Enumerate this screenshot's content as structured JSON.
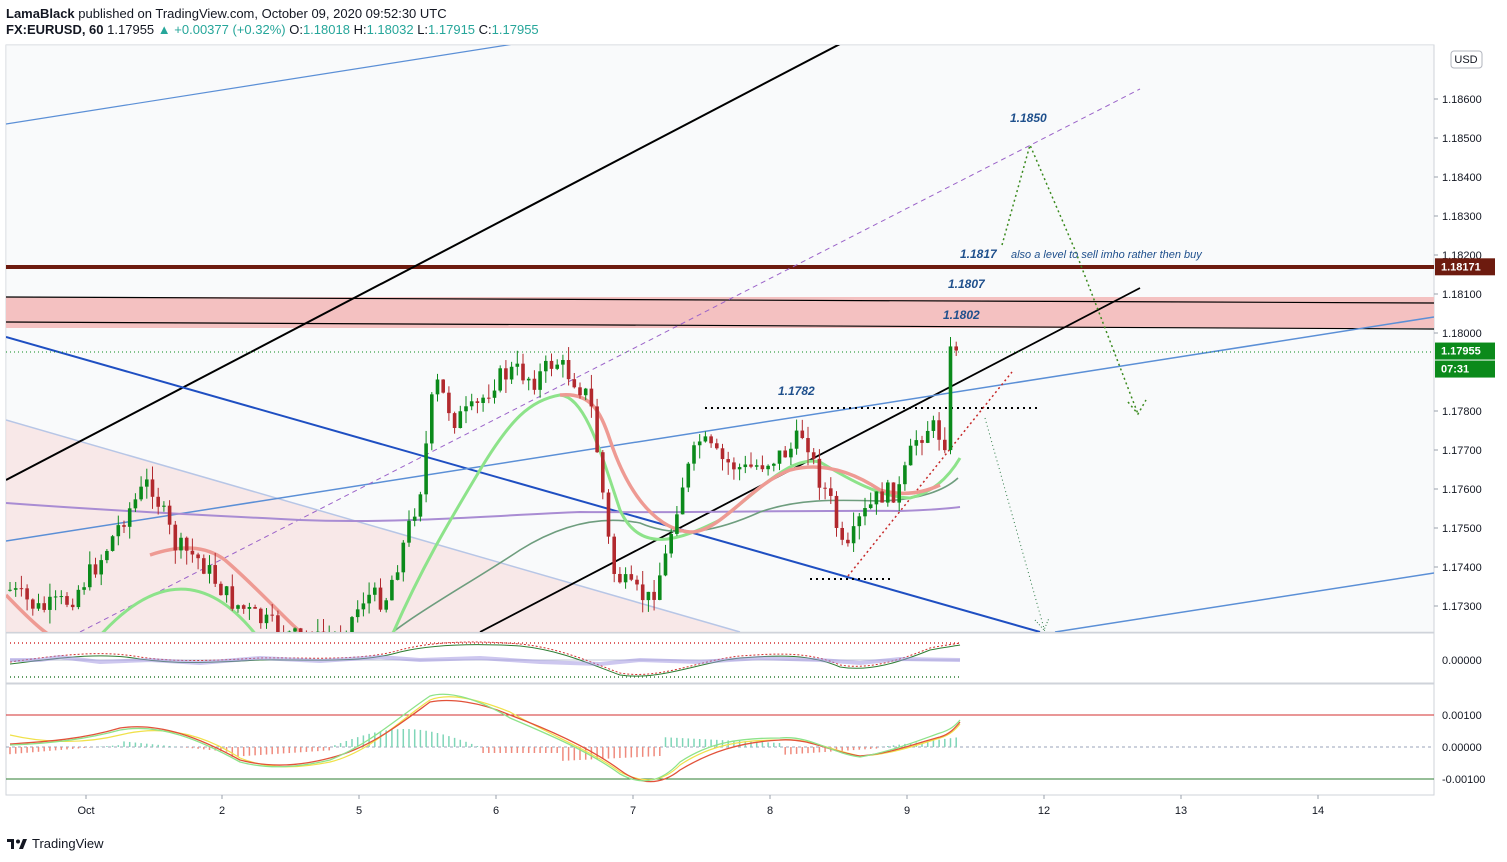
{
  "header": {
    "author": "LamaBlack",
    "published_text": "published on TradingView.com, October 09, 2020 09:52:30 UTC",
    "symbol": "FX:EURUSD, 60",
    "last": "1.17955",
    "change": "+0.00377 (+0.32%)",
    "open_label": "O:",
    "open": "1.18018",
    "high_label": "H:",
    "high": "1.18032",
    "low_label": "L:",
    "low": "1.17915",
    "close_label": "C:",
    "close": "1.17955"
  },
  "footer": {
    "brand": "TradingView"
  },
  "chart_data": [
    {
      "type": "candlestick",
      "title": "EURUSD 60",
      "currency": "USD",
      "x_ticks": [
        "Oct",
        "2",
        "5",
        "6",
        "7",
        "8",
        "9",
        "12",
        "13",
        "14"
      ],
      "y_ticks": [
        "1.18600",
        "1.18500",
        "1.18400",
        "1.18300",
        "1.18200",
        "1.18100",
        "1.18000",
        "1.17800",
        "1.17700",
        "1.17600",
        "1.17500",
        "1.17400",
        "1.17300"
      ],
      "ylim": [
        1.1724,
        1.188
      ],
      "price_tags": [
        {
          "value": "1.18171",
          "color": "#6d1b0f"
        },
        {
          "value": "1.17955",
          "color": "#0b8a1b"
        },
        {
          "value": "07:31",
          "color": "#0b8a1b"
        }
      ],
      "annotations": [
        {
          "text": "1.1850",
          "price": 1.185
        },
        {
          "text": "1.1817",
          "price": 1.1817
        },
        {
          "text": "also a level to sell imho rather then buy",
          "price": 1.1817
        },
        {
          "text": "1.1807",
          "price": 1.1807
        },
        {
          "text": "1.1802",
          "price": 1.1802
        },
        {
          "text": "1.1782",
          "price": 1.1782
        }
      ],
      "levels": [
        {
          "name": "resistance-1.18171",
          "value": 1.18171,
          "color": "#6d1b0f"
        },
        {
          "name": "zone-top",
          "value": 1.18094
        },
        {
          "name": "zone-bottom",
          "value": 1.18013
        }
      ],
      "colors": {
        "up": "#0b8a1b",
        "down": "#b2292e",
        "zone": "#f2b8b8",
        "accent_text": "#1e4f8c"
      }
    },
    {
      "type": "line",
      "title": "oscillator 1",
      "y_ticks": [
        "0.00000"
      ]
    },
    {
      "type": "line",
      "title": "MACD",
      "y_ticks": [
        "0.00100",
        "0.00000",
        "-0.00100"
      ],
      "levels": [
        0.001,
        0.0,
        -0.001
      ]
    }
  ]
}
